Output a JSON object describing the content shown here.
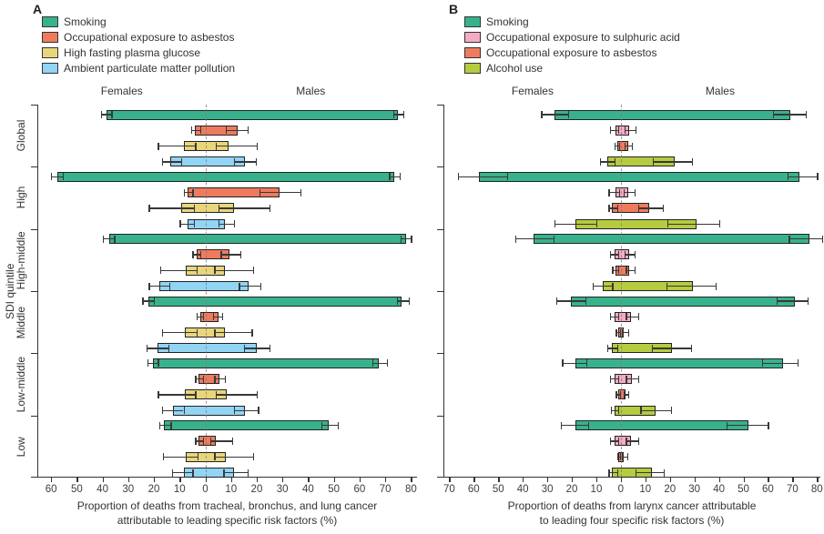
{
  "chart_data": [
    {
      "type": "bar",
      "orientation": "horizontal-diverging",
      "panel_label": "A",
      "females_label": "Females",
      "males_label": "Males",
      "y_axis_title": "SDI quintile",
      "xlabel_line1": "Proportion of deaths from tracheal, bronchus, and lung cancer",
      "xlabel_line2": "attributable to leading specific risk factors (%)",
      "axis": {
        "min": -65,
        "max": 82,
        "ticks": [
          -60,
          -50,
          -40,
          -30,
          -20,
          -10,
          0,
          10,
          20,
          30,
          40,
          50,
          60,
          70,
          80
        ]
      },
      "grid": "zero-dashed-line-only",
      "legend_position": "top-left",
      "show_group_labels": true,
      "categories": [
        "Global",
        "High",
        "High-middle",
        "Middle",
        "Low-middle",
        "Low"
      ],
      "series": [
        {
          "name": "Smoking",
          "color": "#38b28d",
          "female": [
            38.5,
            57.5,
            37.5,
            22.0,
            20.5,
            16.0
          ],
          "female_ci": [
            [
              36.5,
              40.5
            ],
            [
              55.5,
              60.0
            ],
            [
              35.5,
              40.0
            ],
            [
              20.0,
              24.5
            ],
            [
              18.5,
              22.5
            ],
            [
              13.5,
              18.0
            ]
          ],
          "male": [
            75.0,
            73.5,
            78.0,
            76.5,
            67.5,
            48.0
          ],
          "male_ci": [
            [
              73.0,
              77.0
            ],
            [
              71.5,
              75.5
            ],
            [
              76.0,
              80.0
            ],
            [
              74.5,
              79.0
            ],
            [
              65.0,
              70.5
            ],
            [
              45.0,
              51.5
            ]
          ]
        },
        {
          "name": "Occupational exposure to asbestos",
          "color": "#ee7b5e",
          "female": [
            4.0,
            7.0,
            3.5,
            2.0,
            2.5,
            2.5
          ],
          "female_ci": [
            [
              2.0,
              5.5
            ],
            [
              5.0,
              8.5
            ],
            [
              2.0,
              5.0
            ],
            [
              1.0,
              3.5
            ],
            [
              1.0,
              4.0
            ],
            [
              1.0,
              4.0
            ]
          ],
          "male": [
            12.5,
            29.0,
            9.5,
            5.0,
            5.5,
            4.0
          ],
          "male_ci": [
            [
              8.0,
              16.5
            ],
            [
              21.0,
              37.0
            ],
            [
              6.0,
              13.5
            ],
            [
              3.0,
              6.5
            ],
            [
              3.5,
              7.5
            ],
            [
              2.0,
              10.5
            ]
          ]
        },
        {
          "name": "High fasting plasma glucose",
          "color": "#e9d67b",
          "female": [
            8.5,
            9.5,
            7.5,
            8.0,
            8.0,
            7.5
          ],
          "female_ci": [
            [
              4.0,
              18.5
            ],
            [
              4.5,
              22.0
            ],
            [
              3.5,
              17.5
            ],
            [
              3.5,
              17.0
            ],
            [
              4.0,
              18.5
            ],
            [
              3.0,
              16.5
            ]
          ],
          "male": [
            9.0,
            11.0,
            7.5,
            7.5,
            8.5,
            8.0
          ],
          "male_ci": [
            [
              4.0,
              20.0
            ],
            [
              5.0,
              25.0
            ],
            [
              3.5,
              18.5
            ],
            [
              3.5,
              18.0
            ],
            [
              4.0,
              20.0
            ],
            [
              3.5,
              18.5
            ]
          ]
        },
        {
          "name": "Ambient particulate matter pollution",
          "color": "#92d4f4",
          "female": [
            13.5,
            7.0,
            18.0,
            18.5,
            12.5,
            8.5
          ],
          "female_ci": [
            [
              9.5,
              17.0
            ],
            [
              4.5,
              10.0
            ],
            [
              14.0,
              22.0
            ],
            [
              14.5,
              23.0
            ],
            [
              8.5,
              17.0
            ],
            [
              5.0,
              13.0
            ]
          ],
          "male": [
            15.5,
            7.5,
            17.0,
            20.0,
            15.5,
            11.0
          ],
          "male_ci": [
            [
              11.0,
              19.5
            ],
            [
              5.0,
              11.0
            ],
            [
              13.0,
              21.5
            ],
            [
              15.0,
              25.0
            ],
            [
              11.0,
              20.5
            ],
            [
              7.0,
              16.5
            ]
          ]
        }
      ]
    },
    {
      "type": "bar",
      "orientation": "horizontal-diverging",
      "panel_label": "B",
      "females_label": "Females",
      "males_label": "Males",
      "y_axis_title": "",
      "xlabel_line1": "Proportion of deaths from larynx cancer attributable",
      "xlabel_line2": "to leading four specific risk factors (%)",
      "axis": {
        "min": -72,
        "max": 81,
        "ticks": [
          -70,
          -60,
          -50,
          -40,
          -30,
          -20,
          -10,
          0,
          10,
          20,
          30,
          40,
          50,
          60,
          70,
          80
        ]
      },
      "grid": "zero-dashed-line-only",
      "legend_position": "top-left",
      "show_group_labels": false,
      "categories": [
        "Global",
        "High",
        "High-middle",
        "Middle",
        "Low-middle",
        "Low"
      ],
      "series": [
        {
          "name": "Smoking",
          "color": "#38b28d",
          "female": [
            27.0,
            58.0,
            35.5,
            20.5,
            18.5,
            18.5
          ],
          "female_ci": [
            [
              21.5,
              32.5
            ],
            [
              46.5,
              66.5
            ],
            [
              27.5,
              43.0
            ],
            [
              14.5,
              26.5
            ],
            [
              14.0,
              24.0
            ],
            [
              13.5,
              24.5
            ]
          ],
          "male": [
            69.0,
            73.0,
            77.0,
            71.0,
            66.0,
            52.0
          ],
          "male_ci": [
            [
              62.0,
              75.5
            ],
            [
              68.0,
              80.0
            ],
            [
              68.5,
              82.0
            ],
            [
              63.5,
              76.0
            ],
            [
              57.5,
              72.0
            ],
            [
              43.0,
              60.0
            ]
          ]
        },
        {
          "name": "Occupational exposure to sulphuric acid",
          "color": "#f5abc4",
          "female": [
            2.0,
            2.0,
            2.5,
            2.5,
            2.5,
            2.5
          ],
          "female_ci": [
            [
              1.0,
              4.5
            ],
            [
              0.8,
              5.0
            ],
            [
              1.0,
              4.5
            ],
            [
              1.0,
              4.5
            ],
            [
              1.0,
              4.5
            ],
            [
              1.0,
              4.5
            ]
          ],
          "male": [
            3.5,
            3.0,
            3.5,
            4.0,
            4.5,
            4.0
          ],
          "male_ci": [
            [
              1.5,
              6.0
            ],
            [
              1.0,
              5.5
            ],
            [
              1.5,
              5.5
            ],
            [
              2.0,
              7.0
            ],
            [
              2.0,
              7.0
            ],
            [
              2.0,
              7.0
            ]
          ]
        },
        {
          "name": "Occupational exposure to asbestos",
          "color": "#ee7b5e",
          "female": [
            1.5,
            3.5,
            2.0,
            1.0,
            1.0,
            1.0
          ],
          "female_ci": [
            [
              0.7,
              2.5
            ],
            [
              1.5,
              5.0
            ],
            [
              1.0,
              3.5
            ],
            [
              0.5,
              2.0
            ],
            [
              0.5,
              2.0
            ],
            [
              0.4,
              1.5
            ]
          ],
          "male": [
            3.0,
            11.5,
            3.5,
            1.2,
            2.0,
            1.0
          ],
          "male_ci": [
            [
              1.5,
              4.5
            ],
            [
              7.0,
              17.0
            ],
            [
              2.0,
              5.5
            ],
            [
              0.5,
              3.0
            ],
            [
              1.0,
              3.0
            ],
            [
              0.5,
              2.5
            ]
          ]
        },
        {
          "name": "Alcohol use",
          "color": "#b6cb3f",
          "female": [
            5.5,
            18.5,
            7.5,
            3.5,
            2.5,
            3.5
          ],
          "female_ci": [
            [
              2.5,
              8.5
            ],
            [
              10.0,
              27.0
            ],
            [
              3.5,
              11.5
            ],
            [
              1.5,
              5.5
            ],
            [
              1.0,
              4.0
            ],
            [
              1.5,
              5.0
            ]
          ],
          "male": [
            22.0,
            31.0,
            29.5,
            21.0,
            14.0,
            12.5
          ],
          "male_ci": [
            [
              13.0,
              29.0
            ],
            [
              19.0,
              40.0
            ],
            [
              18.5,
              38.5
            ],
            [
              12.5,
              28.5
            ],
            [
              8.0,
              20.5
            ],
            [
              6.0,
              17.5
            ]
          ]
        }
      ]
    }
  ]
}
